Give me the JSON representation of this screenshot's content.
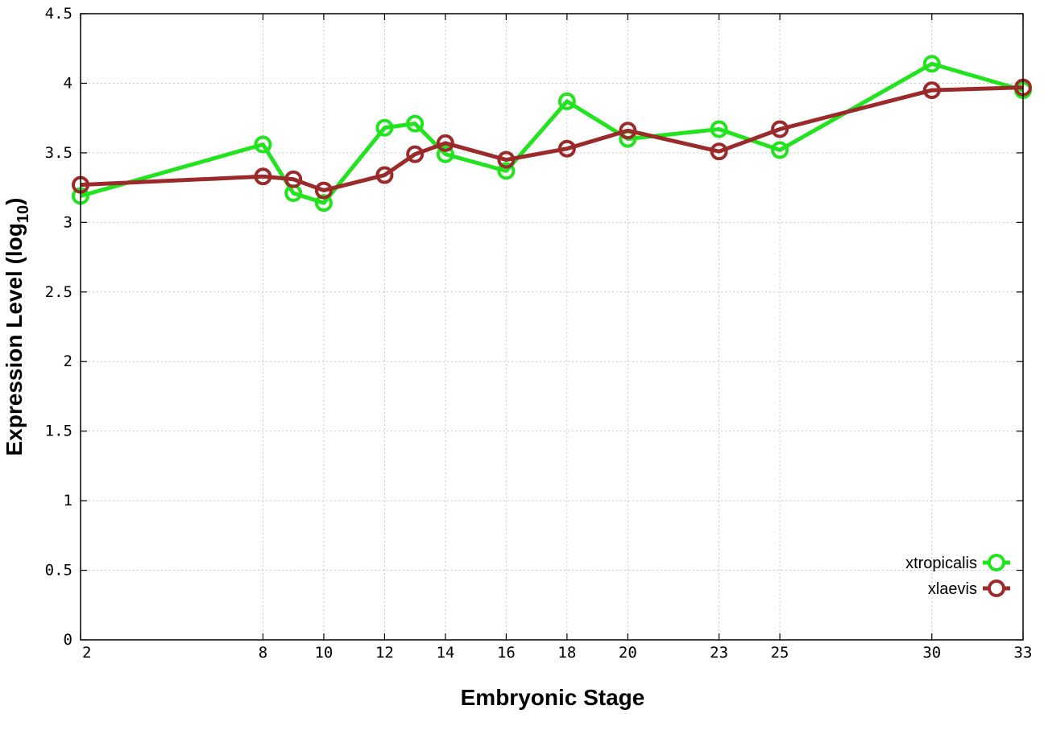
{
  "chart_data": {
    "type": "line",
    "xlabel": "Embryonic Stage",
    "ylabel": {
      "prefix": "Expression Level (log",
      "subscript": "10",
      "suffix": ")"
    },
    "x_ticks": [
      "2",
      "8",
      "10",
      "12",
      "14",
      "16",
      "18",
      "20",
      "23",
      "25",
      "30",
      "33"
    ],
    "y_ticks": [
      "0",
      "0.5",
      "1",
      "1.5",
      "2",
      "2.5",
      "3",
      "3.5",
      "4",
      "4.5"
    ],
    "x_categories": [
      "2",
      "8",
      "9",
      "10",
      "12",
      "13",
      "14",
      "16",
      "18",
      "20",
      "23",
      "25",
      "30",
      "33"
    ],
    "ylim": [
      0,
      4.5
    ],
    "grid": true,
    "legend_position": "bottom-right",
    "series": [
      {
        "name": "xtropicalis",
        "color": "#22e41e",
        "values": [
          3.19,
          3.56,
          3.21,
          3.14,
          3.68,
          3.71,
          3.49,
          3.37,
          3.87,
          3.6,
          3.67,
          3.52,
          4.14,
          3.95
        ]
      },
      {
        "name": "xlaevis",
        "color": "#9b2b2b",
        "values": [
          3.27,
          3.33,
          3.31,
          3.23,
          3.34,
          3.49,
          3.57,
          3.45,
          3.53,
          3.66,
          3.51,
          3.67,
          3.95,
          3.97
        ]
      }
    ]
  }
}
